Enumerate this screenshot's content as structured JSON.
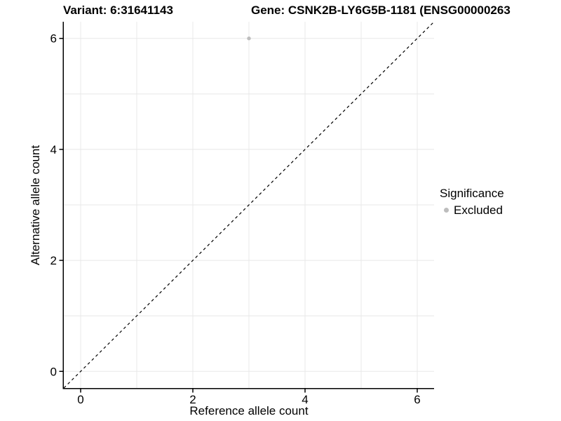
{
  "titles": {
    "variant": "Variant: 6:31641143",
    "gene": "Gene: CSNK2B-LY6G5B-1181 (ENSG00000263"
  },
  "chart_data": {
    "type": "scatter",
    "xlabel": "Reference allele count",
    "ylabel": "Alternative allele count",
    "xlim": [
      -0.3,
      6.3
    ],
    "ylim": [
      -0.3,
      6.3
    ],
    "x_ticks": [
      0,
      2,
      4,
      6
    ],
    "y_ticks": [
      0,
      2,
      4,
      6
    ],
    "grid_lines": [
      0,
      1,
      2,
      3,
      4,
      5,
      6
    ],
    "grid": true,
    "identity_line": {
      "slope": 1,
      "intercept": 0,
      "style": "dashed",
      "color": "#000000"
    },
    "series": [
      {
        "name": "Excluded",
        "color": "#bdbdbd",
        "points": [
          {
            "x": 3,
            "y": 6
          }
        ]
      }
    ],
    "legend": {
      "title": "Significance",
      "position": "right",
      "items": [
        {
          "label": "Excluded",
          "color": "#bdbdbd"
        }
      ]
    },
    "colors": {
      "grid": "#e8e8e8",
      "axis": "#000000",
      "text": "#000000",
      "background": "#ffffff"
    }
  }
}
